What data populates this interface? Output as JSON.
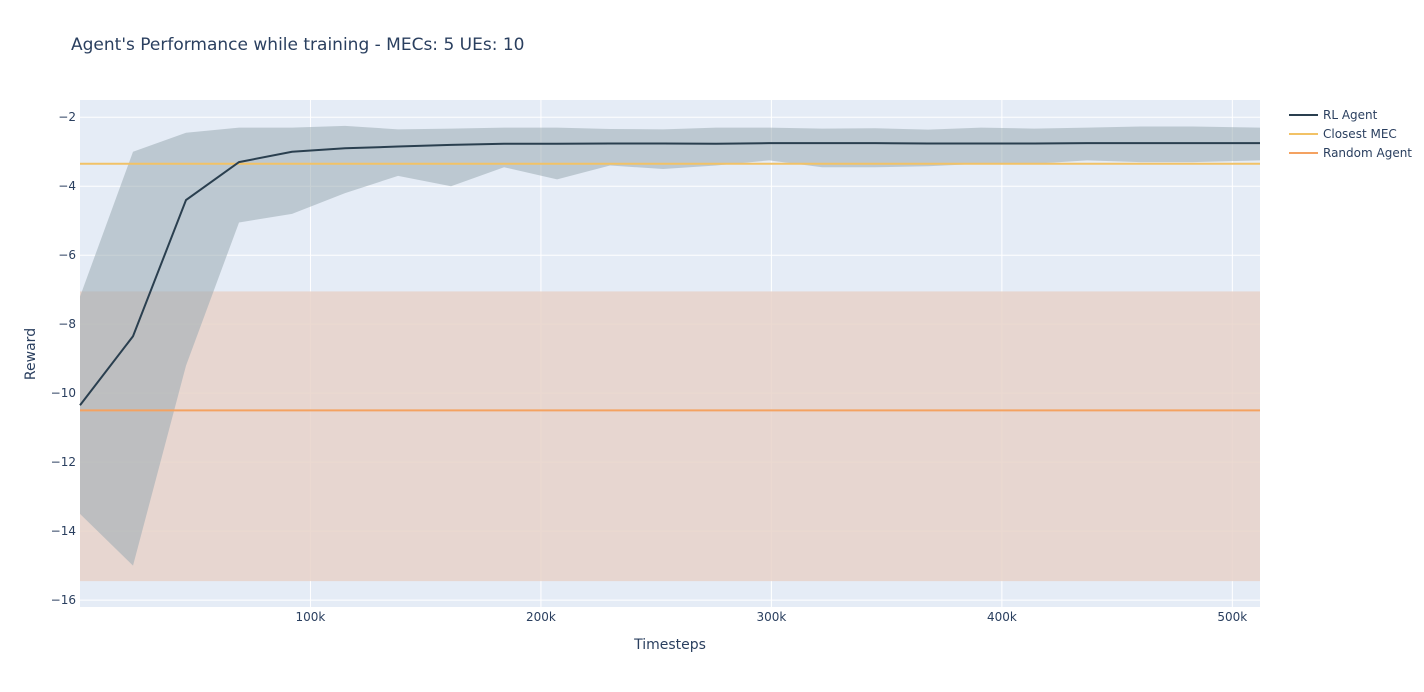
{
  "chart_data": {
    "type": "line",
    "title": "Agent's Performance while training - MECs: 5 UEs: 10",
    "xlabel": "Timesteps",
    "ylabel": "Reward",
    "xlim": [
      0,
      512000
    ],
    "ylim": [
      -16.2,
      -1.5
    ],
    "x_ticks": [
      {
        "value": 100000,
        "label": "100k"
      },
      {
        "value": 200000,
        "label": "200k"
      },
      {
        "value": 300000,
        "label": "300k"
      },
      {
        "value": 400000,
        "label": "400k"
      },
      {
        "value": 500000,
        "label": "500k"
      }
    ],
    "y_ticks": [
      {
        "value": -2,
        "label": "−2"
      },
      {
        "value": -4,
        "label": "−4"
      },
      {
        "value": -6,
        "label": "−6"
      },
      {
        "value": -8,
        "label": "−8"
      },
      {
        "value": -10,
        "label": "−10"
      },
      {
        "value": -12,
        "label": "−12"
      },
      {
        "value": -14,
        "label": "−14"
      },
      {
        "value": -16,
        "label": "−16"
      }
    ],
    "grid": true,
    "legend_position": "top-right",
    "colors": {
      "plot_bg": "#e5ecf6",
      "paper_bg": "#ffffff",
      "grid": "#ffffff",
      "rl_agent": "#2a3f4f",
      "rl_band": "#9aabb3",
      "closest_mec": "#f2c266",
      "random_agent": "#f4a261",
      "random_band": "#e8d2c9",
      "text": "#2a3f5f"
    },
    "series": [
      {
        "name": "RL Agent",
        "x": [
          0,
          23000,
          46000,
          69000,
          92000,
          115000,
          138000,
          161000,
          184000,
          207000,
          230000,
          253000,
          276000,
          299000,
          322000,
          345000,
          368000,
          391000,
          414000,
          437000,
          460000,
          483000,
          512000
        ],
        "y": [
          -10.35,
          -8.35,
          -4.4,
          -3.3,
          -3.0,
          -2.9,
          -2.85,
          -2.8,
          -2.77,
          -2.77,
          -2.76,
          -2.76,
          -2.77,
          -2.75,
          -2.75,
          -2.75,
          -2.76,
          -2.76,
          -2.76,
          -2.75,
          -2.75,
          -2.75,
          -2.75
        ],
        "upper": [
          -7.2,
          -3.0,
          -2.45,
          -2.3,
          -2.3,
          -2.25,
          -2.35,
          -2.33,
          -2.3,
          -2.3,
          -2.34,
          -2.35,
          -2.3,
          -2.3,
          -2.33,
          -2.32,
          -2.36,
          -2.3,
          -2.33,
          -2.3,
          -2.27,
          -2.27,
          -2.3
        ],
        "lower": [
          -13.5,
          -15.0,
          -9.2,
          -5.05,
          -4.8,
          -4.2,
          -3.7,
          -4.0,
          -3.45,
          -3.8,
          -3.4,
          -3.5,
          -3.4,
          -3.25,
          -3.45,
          -3.45,
          -3.42,
          -3.35,
          -3.35,
          -3.25,
          -3.3,
          -3.3,
          -3.25
        ]
      },
      {
        "name": "Closest MEC",
        "x": [
          0,
          512000
        ],
        "y": [
          -3.35,
          -3.35
        ]
      },
      {
        "name": "Random Agent",
        "x": [
          0,
          512000
        ],
        "y": [
          -10.5,
          -10.5
        ],
        "band": [
          -7.05,
          -15.45
        ]
      }
    ]
  }
}
